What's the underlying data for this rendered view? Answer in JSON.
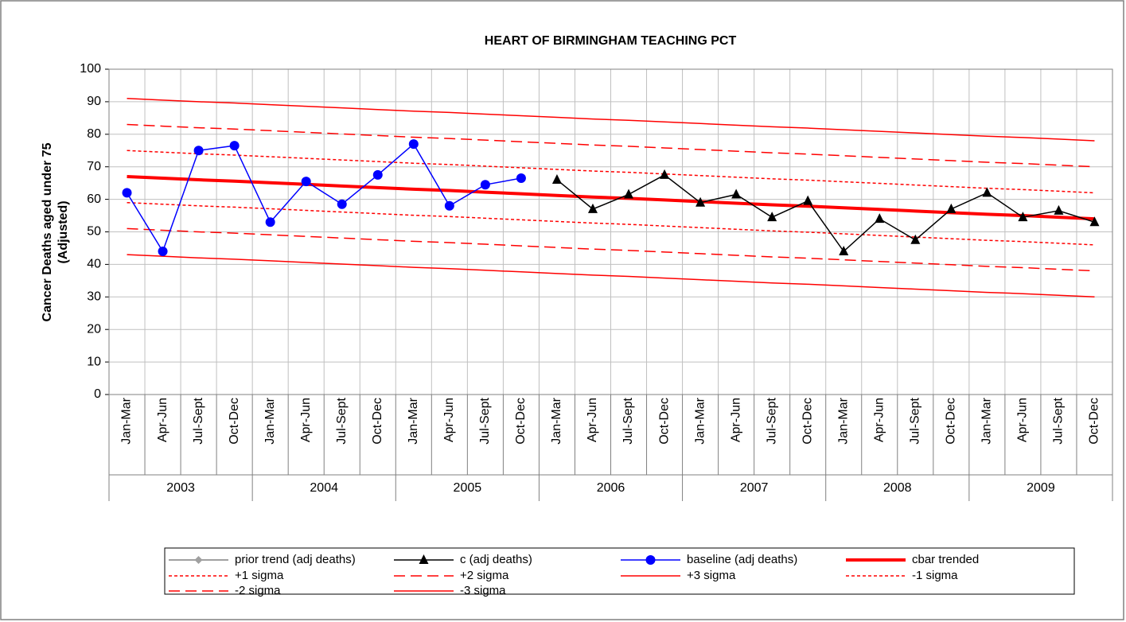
{
  "chart_data": {
    "type": "line",
    "title": "HEART OF BIRMINGHAM TEACHING PCT",
    "ylabel": [
      "Cancer Deaths aged under 75",
      "(Adjusted)"
    ],
    "categories": [
      "Jan-Mar",
      "Apr-Jun",
      "Jul-Sept",
      "Oct-Dec",
      "Jan-Mar",
      "Apr-Jun",
      "Jul-Sept",
      "Oct-Dec",
      "Jan-Mar",
      "Apr-Jun",
      "Jul-Sept",
      "Oct-Dec",
      "Jan-Mar",
      "Apr-Jun",
      "Jul-Sept",
      "Oct-Dec",
      "Jan-Mar",
      "Apr-Jun",
      "Jul-Sept",
      "Oct-Dec",
      "Jan-Mar",
      "Apr-Jun",
      "Jul-Sept",
      "Oct-Dec",
      "Jan-Mar",
      "Apr-Jun",
      "Jul-Sept",
      "Oct-Dec"
    ],
    "category_groups": [
      "2003",
      "2004",
      "2005",
      "2006",
      "2007",
      "2008",
      "2009"
    ],
    "ylim": [
      0,
      100
    ],
    "yticks": [
      0,
      10,
      20,
      30,
      40,
      50,
      60,
      70,
      80,
      90,
      100
    ],
    "grid": true,
    "series": [
      {
        "name": "prior trend (adj deaths)",
        "color": "#a0a0a0",
        "marker": "diamond",
        "dash": "solid",
        "width": 2,
        "values": [
          null,
          null,
          null,
          null,
          null,
          null,
          null,
          null,
          null,
          null,
          null,
          null,
          null,
          null,
          null,
          null,
          null,
          null,
          null,
          null,
          null,
          null,
          null,
          null,
          null,
          null,
          null,
          null
        ]
      },
      {
        "name": "c (adj deaths)",
        "color": "#000000",
        "marker": "triangle",
        "dash": "solid",
        "width": 1.5,
        "values": [
          null,
          null,
          null,
          null,
          null,
          null,
          null,
          null,
          null,
          null,
          null,
          null,
          66,
          57,
          61.5,
          67.5,
          59,
          61.5,
          54.5,
          59.5,
          44,
          54,
          47.5,
          57,
          62,
          54.5,
          56.5,
          53
        ]
      },
      {
        "name": "baseline (adj deaths)",
        "color": "#0000ff",
        "marker": "circle",
        "dash": "solid",
        "width": 1.5,
        "values": [
          62,
          44,
          75,
          76.5,
          53,
          65.5,
          58.5,
          67.5,
          77,
          58,
          64.5,
          66.5,
          null,
          null,
          null,
          null,
          null,
          null,
          null,
          null,
          null,
          null,
          null,
          null,
          null,
          null,
          null,
          null
        ]
      },
      {
        "name": "cbar trended",
        "color": "#ff0000",
        "marker": "none",
        "dash": "solid",
        "width": 4,
        "values": [
          67,
          66.5,
          66,
          65.6,
          65.1,
          64.6,
          64.1,
          63.6,
          63.1,
          62.7,
          62.2,
          61.7,
          61.2,
          60.7,
          60.3,
          59.8,
          59.3,
          58.8,
          58.3,
          57.9,
          57.4,
          56.9,
          56.4,
          55.9,
          55.4,
          55,
          54.5,
          54
        ]
      },
      {
        "name": "+1 sigma",
        "color": "#ff0000",
        "marker": "none",
        "dash": "short",
        "width": 1.5,
        "values": [
          75,
          74.5,
          74,
          73.6,
          73.1,
          72.6,
          72.1,
          71.6,
          71.1,
          70.7,
          70.2,
          69.7,
          69.2,
          68.7,
          68.3,
          67.8,
          67.3,
          66.8,
          66.3,
          65.9,
          65.4,
          64.9,
          64.4,
          63.9,
          63.4,
          63,
          62.5,
          62
        ]
      },
      {
        "name": "+2 sigma",
        "color": "#ff0000",
        "marker": "none",
        "dash": "long",
        "width": 1.5,
        "values": [
          83,
          82.5,
          82,
          81.6,
          81.1,
          80.6,
          80.1,
          79.6,
          79.1,
          78.7,
          78.2,
          77.7,
          77.2,
          76.7,
          76.3,
          75.8,
          75.3,
          74.8,
          74.3,
          73.9,
          73.4,
          72.9,
          72.4,
          71.9,
          71.4,
          71,
          70.5,
          70
        ]
      },
      {
        "name": "+3 sigma",
        "color": "#ff0000",
        "marker": "none",
        "dash": "solid",
        "width": 1.5,
        "values": [
          91,
          90.5,
          90,
          89.6,
          89.1,
          88.6,
          88.1,
          87.6,
          87.1,
          86.7,
          86.2,
          85.7,
          85.2,
          84.7,
          84.3,
          83.8,
          83.3,
          82.8,
          82.3,
          81.9,
          81.4,
          80.9,
          80.4,
          79.9,
          79.4,
          79,
          78.5,
          78
        ]
      },
      {
        "name": "-1 sigma",
        "color": "#ff0000",
        "marker": "none",
        "dash": "short",
        "width": 1.5,
        "values": [
          59,
          58.5,
          58,
          57.6,
          57.1,
          56.6,
          56.1,
          55.6,
          55.1,
          54.7,
          54.2,
          53.7,
          53.2,
          52.7,
          52.3,
          51.8,
          51.3,
          50.8,
          50.3,
          49.9,
          49.4,
          48.9,
          48.4,
          47.9,
          47.4,
          47,
          46.5,
          46
        ]
      },
      {
        "name": "-2 sigma",
        "color": "#ff0000",
        "marker": "none",
        "dash": "long",
        "width": 1.5,
        "values": [
          51,
          50.5,
          50,
          49.6,
          49.1,
          48.6,
          48.1,
          47.6,
          47.1,
          46.7,
          46.2,
          45.7,
          45.2,
          44.7,
          44.3,
          43.8,
          43.3,
          42.8,
          42.3,
          41.9,
          41.4,
          40.9,
          40.4,
          39.9,
          39.4,
          39,
          38.5,
          38
        ]
      },
      {
        "name": "-3 sigma",
        "color": "#ff0000",
        "marker": "none",
        "dash": "solid",
        "width": 1.5,
        "values": [
          43,
          42.5,
          42,
          41.6,
          41.1,
          40.6,
          40.1,
          39.6,
          39.1,
          38.7,
          38.2,
          37.7,
          37.2,
          36.7,
          36.3,
          35.8,
          35.3,
          34.8,
          34.3,
          33.9,
          33.4,
          32.9,
          32.4,
          31.9,
          31.4,
          31,
          30.5,
          30
        ]
      }
    ]
  }
}
